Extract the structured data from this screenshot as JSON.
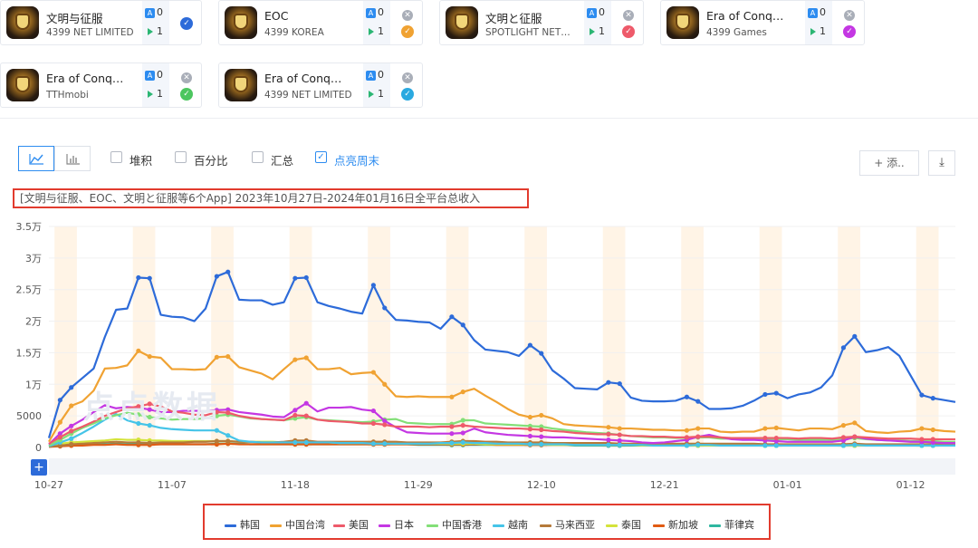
{
  "apps": [
    {
      "name": "文明与征服",
      "publisher": "4399 NET LIMITED",
      "ios": "0",
      "android": "1",
      "check_color": "#2d6bd9"
    },
    {
      "name": "EOC",
      "publisher": "4399 KOREA",
      "ios": "0",
      "android": "1",
      "check_color": "#f0a232"
    },
    {
      "name": "文明と征服",
      "publisher": "SPOTLIGHT NET…",
      "ios": "0",
      "android": "1",
      "check_color": "#ee5a6a"
    },
    {
      "name": "Era of Conq…",
      "publisher": "4399 Games",
      "ios": "0",
      "android": "1",
      "check_color": "#c437e3"
    },
    {
      "name": "Era of Conq…",
      "publisher": "TTHmobi",
      "ios": "0",
      "android": "1",
      "check_color": "#4cc65f"
    },
    {
      "name": "Era of Conq…",
      "publisher": "4399 NET LIMITED",
      "ios": "0",
      "android": "1",
      "check_color": "#2aa9e0"
    }
  ],
  "toolbar": {
    "stack_label": "堆积",
    "percent_label": "百分比",
    "total_label": "汇总",
    "weekend_label": "点亮周末",
    "add_label": "+ 添..",
    "download_icon": "download-icon",
    "line_icon": "line-chart-icon",
    "bar_icon": "bar-chart-icon"
  },
  "watermark": "点点数据",
  "chart_data": {
    "type": "line",
    "title": "[文明与征服、EOC、文明と征服等6个App]  2023年10月27日-2024年01月16日全平台总收入",
    "y_ticks": [
      "0",
      "5000",
      "1万",
      "1.5万",
      "2万",
      "2.5万",
      "3万",
      "3.5万"
    ],
    "ylim": [
      0,
      35000
    ],
    "x_ticks": [
      "10-27",
      "11-07",
      "11-18",
      "11-29",
      "12-10",
      "12-21",
      "01-01",
      "01-12"
    ],
    "days": 82,
    "weekend_starts": [
      1,
      8,
      15,
      22,
      29,
      36,
      43,
      50,
      57,
      64,
      71,
      78
    ],
    "series": [
      {
        "name": "韩国",
        "color": "#2d6bd9",
        "values": [
          1500,
          7500,
          9500,
          11000,
          12500,
          17500,
          21800,
          22000,
          26900,
          26800,
          21000,
          20700,
          20600,
          20000,
          22000,
          27100,
          27800,
          23400,
          23300,
          23300,
          22600,
          23000,
          26800,
          26900,
          23000,
          22400,
          22000,
          21500,
          21200,
          25700,
          22100,
          20200,
          20100,
          19900,
          19800,
          18800,
          20700,
          19400,
          17000,
          15500,
          15300,
          15100,
          14500,
          16200,
          14900,
          12200,
          10900,
          9400,
          9300,
          9200,
          10300,
          10100,
          7900,
          7400,
          7300,
          7300,
          7400,
          8000,
          7300,
          6100,
          6100,
          6200,
          6600,
          7400,
          8400,
          8600,
          7800,
          8400,
          8700,
          9500,
          11400,
          15800,
          17600,
          15100,
          15400,
          15900,
          14500,
          11400,
          8300,
          7800,
          7500,
          7200
        ]
      },
      {
        "name": "中国台湾",
        "color": "#f0a232",
        "values": [
          900,
          4000,
          6600,
          7300,
          9000,
          12500,
          12600,
          13000,
          15300,
          14400,
          14200,
          12400,
          12400,
          12300,
          12400,
          14300,
          14400,
          12700,
          12200,
          11700,
          10800,
          12400,
          13900,
          14200,
          12400,
          12400,
          12600,
          11600,
          11800,
          11900,
          10000,
          8100,
          8000,
          8100,
          8000,
          8000,
          8000,
          8800,
          9300,
          8200,
          7200,
          6100,
          5200,
          4800,
          5100,
          4600,
          3700,
          3500,
          3400,
          3300,
          3200,
          3000,
          3000,
          2900,
          2800,
          2800,
          2700,
          2700,
          3000,
          3000,
          2500,
          2400,
          2500,
          2500,
          3000,
          3100,
          2900,
          2700,
          3000,
          3000,
          2900,
          3500,
          3900,
          2600,
          2400,
          2300,
          2500,
          2600,
          3000,
          2800,
          2600,
          2500
        ]
      },
      {
        "name": "美国",
        "color": "#ee5a6a",
        "values": [
          600,
          1600,
          2600,
          3300,
          4100,
          5000,
          5600,
          6200,
          6500,
          6900,
          6500,
          5700,
          5500,
          5200,
          5100,
          5600,
          5500,
          5000,
          4700,
          4500,
          4400,
          4300,
          5100,
          5000,
          4400,
          4200,
          4100,
          4000,
          3800,
          3800,
          3600,
          3300,
          3300,
          3300,
          3200,
          3300,
          3300,
          3500,
          3300,
          3200,
          3100,
          3000,
          3000,
          2900,
          2800,
          2600,
          2500,
          2300,
          2200,
          2100,
          2100,
          2000,
          1800,
          1800,
          1700,
          1700,
          1600,
          1600,
          1700,
          1700,
          1600,
          1500,
          1500,
          1500,
          1500,
          1500,
          1500,
          1400,
          1500,
          1500,
          1400,
          1600,
          1700,
          1600,
          1500,
          1400,
          1400,
          1400,
          1300,
          1300,
          1300,
          1300
        ]
      },
      {
        "name": "日本",
        "color": "#c437e3",
        "values": [
          500,
          2200,
          3400,
          4400,
          5600,
          6700,
          6200,
          6400,
          6300,
          6000,
          5600,
          5600,
          5800,
          5800,
          5800,
          5900,
          6000,
          5600,
          5400,
          5200,
          4900,
          4800,
          5900,
          7000,
          5700,
          6300,
          6300,
          6400,
          6000,
          5800,
          4200,
          3200,
          2400,
          2300,
          2200,
          2200,
          2200,
          2300,
          3000,
          2400,
          2200,
          2000,
          1900,
          1800,
          1700,
          1600,
          1600,
          1500,
          1400,
          1300,
          1200,
          1100,
          1000,
          800,
          700,
          800,
          1000,
          1200,
          1700,
          2000,
          1600,
          1300,
          1200,
          1200,
          1100,
          1000,
          900,
          900,
          900,
          900,
          900,
          1100,
          1700,
          1400,
          1200,
          1100,
          1000,
          900,
          900,
          800,
          700,
          700
        ]
      },
      {
        "name": "中国香港",
        "color": "#83df78",
        "values": [
          300,
          1200,
          2200,
          3100,
          3800,
          4600,
          5100,
          5500,
          5200,
          4800,
          4600,
          4400,
          4500,
          4500,
          4600,
          5000,
          5200,
          4900,
          4600,
          4500,
          4400,
          4300,
          4600,
          4800,
          4400,
          4300,
          4200,
          4100,
          4000,
          4100,
          4400,
          4500,
          3900,
          3800,
          3700,
          3700,
          3700,
          4300,
          4300,
          3800,
          3700,
          3600,
          3500,
          3400,
          3300,
          3000,
          2800,
          2600,
          2400,
          2300,
          2200,
          2000,
          1800,
          1700,
          1600,
          1600,
          1500,
          1500,
          1600,
          1600,
          1400,
          1400,
          1400,
          1400,
          1300,
          1300,
          1300,
          1200,
          1200,
          1200,
          1200,
          1300,
          1500,
          1300,
          1200,
          1100,
          1100,
          1000,
          1000,
          1000,
          900,
          900
        ]
      },
      {
        "name": "越南",
        "color": "#45c4e8",
        "values": [
          200,
          800,
          1400,
          2300,
          3300,
          4400,
          5300,
          4300,
          3800,
          3500,
          3100,
          2900,
          2800,
          2700,
          2700,
          2700,
          1900,
          1100,
          900,
          800,
          800,
          800,
          800,
          800,
          800,
          800,
          700,
          700,
          700,
          600,
          600,
          600,
          600,
          600,
          600,
          700,
          700,
          800,
          700,
          700,
          600,
          600,
          600,
          500,
          500,
          500,
          500,
          400,
          400,
          400,
          400,
          400,
          400,
          400,
          300,
          300,
          300,
          300,
          400,
          400,
          300,
          300,
          300,
          300,
          300,
          300,
          300,
          300,
          300,
          300,
          300,
          300,
          400,
          300,
          300,
          300,
          300,
          300,
          300,
          300,
          300,
          300
        ]
      },
      {
        "name": "马来西亚",
        "color": "#b57a3a",
        "values": [
          100,
          300,
          500,
          600,
          700,
          800,
          900,
          800,
          800,
          700,
          800,
          800,
          800,
          900,
          900,
          1000,
          1000,
          900,
          900,
          800,
          800,
          900,
          1100,
          1100,
          900,
          900,
          900,
          900,
          900,
          900,
          900,
          900,
          800,
          800,
          800,
          800,
          900,
          1000,
          1000,
          900,
          900,
          800,
          800,
          800,
          800,
          700,
          700,
          700,
          700,
          700,
          700,
          600,
          600,
          600,
          600,
          600,
          600,
          600,
          600,
          600,
          600,
          600,
          600,
          600,
          500,
          500,
          500,
          500,
          500,
          500,
          500,
          500,
          600,
          500,
          500,
          500,
          500,
          500,
          500,
          500,
          500,
          500
        ]
      },
      {
        "name": "泰国",
        "color": "#d4e33a",
        "values": [
          300,
          600,
          800,
          900,
          1000,
          1100,
          1300,
          1200,
          1200,
          1100,
          1100,
          1000,
          1000,
          1000,
          1000,
          1000,
          1000,
          900,
          900,
          900,
          900,
          800,
          800,
          800,
          800,
          800,
          700,
          700,
          700,
          700,
          700,
          600,
          600,
          600,
          600,
          600,
          600,
          600,
          600,
          500,
          500,
          500,
          500,
          500,
          500,
          400,
          400,
          400,
          400,
          400,
          400,
          400,
          400,
          300,
          300,
          300,
          300,
          300,
          300,
          300,
          300,
          300,
          300,
          300,
          300,
          300,
          300,
          300,
          300,
          300,
          300,
          300,
          300,
          300,
          300,
          300,
          300,
          300,
          300,
          300,
          300,
          300
        ]
      },
      {
        "name": "新加坡",
        "color": "#e15b12",
        "values": [
          100,
          200,
          300,
          300,
          400,
          400,
          500,
          400,
          400,
          400,
          500,
          500,
          500,
          500,
          500,
          500,
          600,
          500,
          500,
          500,
          500,
          500,
          500,
          500,
          500,
          500,
          500,
          500,
          500,
          500,
          500,
          500,
          500,
          500,
          500,
          500,
          500,
          500,
          500,
          500,
          400,
          400,
          400,
          400,
          400,
          400,
          400,
          400,
          400,
          400,
          400,
          400,
          400,
          400,
          400,
          400,
          400,
          400,
          400,
          400,
          400,
          400,
          400,
          400,
          400,
          400,
          400,
          400,
          400,
          400,
          400,
          400,
          400,
          400,
          400,
          400,
          400,
          400,
          400,
          400,
          400,
          400
        ]
      },
      {
        "name": "菲律宾",
        "color": "#2fb7a0",
        "values": [
          200,
          300,
          400,
          400,
          500,
          500,
          600,
          500,
          500,
          500,
          500,
          500,
          500,
          500,
          500,
          600,
          600,
          600,
          500,
          500,
          500,
          500,
          500,
          500,
          500,
          500,
          500,
          500,
          500,
          500,
          500,
          500,
          500,
          400,
          400,
          400,
          400,
          400,
          400,
          400,
          400,
          400,
          400,
          400,
          400,
          400,
          400,
          300,
          300,
          300,
          300,
          300,
          300,
          300,
          300,
          300,
          300,
          300,
          300,
          300,
          300,
          300,
          300,
          300,
          300,
          300,
          300,
          300,
          300,
          300,
          300,
          300,
          300,
          300,
          300,
          300,
          300,
          300,
          300,
          300,
          300,
          300
        ]
      }
    ]
  }
}
